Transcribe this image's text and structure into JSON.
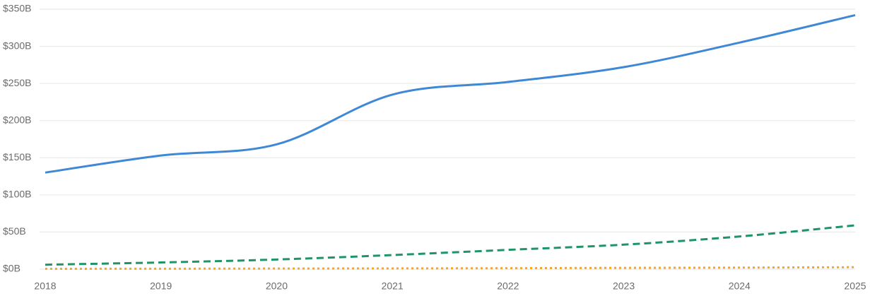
{
  "chart_data": {
    "type": "line",
    "x": [
      2018,
      2019,
      2020,
      2021,
      2022,
      2023,
      2024,
      2025
    ],
    "xlim": [
      2018,
      2025
    ],
    "xticks": [
      2018,
      2019,
      2020,
      2021,
      2022,
      2023,
      2024,
      2025
    ],
    "ylim": [
      0,
      350
    ],
    "yticks": [
      {
        "value": 0,
        "label": "$0B"
      },
      {
        "value": 50,
        "label": "$50B"
      },
      {
        "value": 100,
        "label": "$100B"
      },
      {
        "value": 150,
        "label": "$150B"
      },
      {
        "value": 200,
        "label": "$200B"
      },
      {
        "value": 250,
        "label": "$250B"
      },
      {
        "value": 300,
        "label": "$300B"
      },
      {
        "value": 350,
        "label": "$350B"
      }
    ],
    "grid": true,
    "series": [
      {
        "color": "#3f88d5",
        "dash": "solid",
        "values": [
          130,
          153,
          168,
          235,
          252,
          272,
          305,
          342
        ]
      },
      {
        "color": "#1f9466",
        "dash": "dashed",
        "values": [
          6,
          9,
          13,
          19,
          26,
          33,
          44,
          59
        ]
      },
      {
        "color": "#f0a73a",
        "dash": "dotted",
        "values": [
          0.5,
          0.6,
          0.8,
          1,
          1.3,
          1.7,
          2.1,
          2.6
        ]
      }
    ]
  }
}
